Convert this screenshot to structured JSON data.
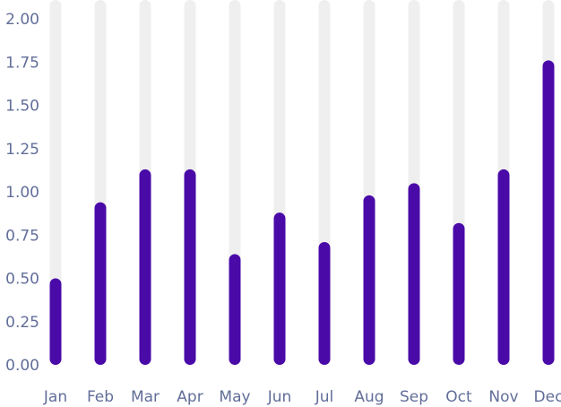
{
  "chart_data": {
    "type": "bar",
    "categories": [
      "Jan",
      "Feb",
      "Mar",
      "Apr",
      "May",
      "Jun",
      "Jul",
      "Aug",
      "Sep",
      "Oct",
      "Nov",
      "Dec"
    ],
    "values": [
      0.5,
      0.94,
      1.13,
      1.13,
      0.64,
      0.88,
      0.71,
      0.98,
      1.05,
      0.82,
      1.13,
      1.76
    ],
    "ylim": [
      0,
      2
    ],
    "yticks": [
      "0.00",
      "0.25",
      "0.50",
      "0.75",
      "1.00",
      "1.25",
      "1.50",
      "1.75",
      "2.00"
    ],
    "title": "",
    "xlabel": "",
    "ylabel": "",
    "grid": false,
    "colors": {
      "bar": "#4a0aa8",
      "track": "#efefef",
      "tick_text": "#626e99"
    }
  }
}
